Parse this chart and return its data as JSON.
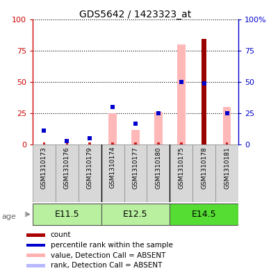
{
  "title": "GDS5642 / 1423323_at",
  "samples": [
    "GSM1310173",
    "GSM1310176",
    "GSM1310179",
    "GSM1310174",
    "GSM1310177",
    "GSM1310180",
    "GSM1310175",
    "GSM1310178",
    "GSM1310181"
  ],
  "pink_bars": [
    2,
    2,
    2,
    25,
    12,
    26,
    80,
    2,
    30
  ],
  "blue_squares": [
    11,
    3,
    5,
    30,
    17,
    25,
    50,
    49,
    25
  ],
  "red_bars": [
    0,
    0,
    0,
    0,
    0,
    0,
    0,
    84,
    0
  ],
  "small_red_bars": [
    2,
    2,
    2,
    2,
    2,
    2,
    2,
    0,
    2
  ],
  "ylim": [
    0,
    100
  ],
  "yticks": [
    0,
    25,
    50,
    75,
    100
  ],
  "left_axis_color": "#cc0000",
  "right_axis_color": "#0000cc",
  "age_groups": [
    {
      "label": "E11.5",
      "start": 0,
      "end": 2,
      "color": "#b8f0a0"
    },
    {
      "label": "E12.5",
      "start": 3,
      "end": 5,
      "color": "#b8f0a0"
    },
    {
      "label": "E14.5",
      "start": 6,
      "end": 8,
      "color": "#55dd33"
    }
  ],
  "legend_items": [
    {
      "color": "#aa0000",
      "label": "count"
    },
    {
      "color": "#0000cc",
      "label": "percentile rank within the sample"
    },
    {
      "color": "#ffb0b0",
      "label": "value, Detection Call = ABSENT"
    },
    {
      "color": "#b8b8ff",
      "label": "rank, Detection Call = ABSENT"
    }
  ]
}
